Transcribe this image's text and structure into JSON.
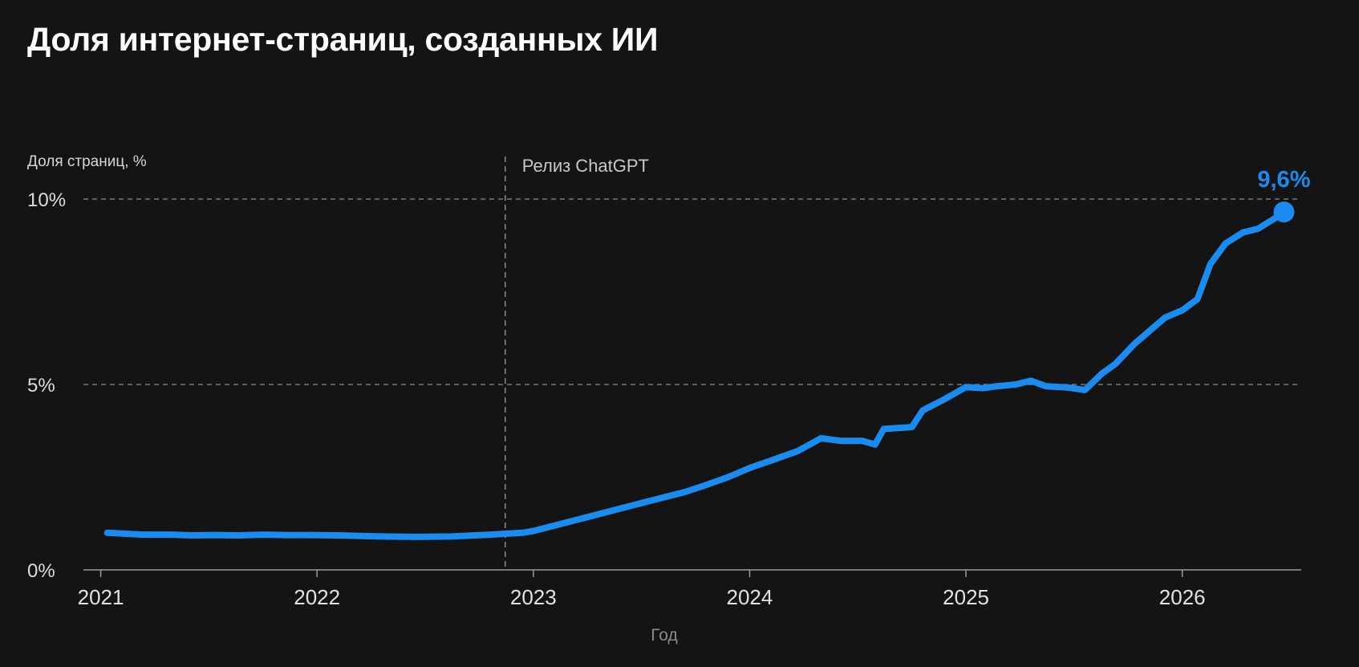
{
  "chart_data": {
    "type": "line",
    "title": "Доля интернет-страниц, созданных ИИ",
    "ylabel": "Доля страниц, %",
    "xlabel": "Год",
    "ylim": [
      0,
      10
    ],
    "xlim": [
      2020.92,
      2026.55
    ],
    "yticks": [
      {
        "value": 0,
        "label": "0%"
      },
      {
        "value": 5,
        "label": "5%"
      },
      {
        "value": 10,
        "label": "10%"
      }
    ],
    "xticks": [
      {
        "value": 2021,
        "label": "2021"
      },
      {
        "value": 2022,
        "label": "2022"
      },
      {
        "value": 2023,
        "label": "2023"
      },
      {
        "value": 2024,
        "label": "2024"
      },
      {
        "value": 2025,
        "label": "2025"
      },
      {
        "value": 2026,
        "label": "2026"
      }
    ],
    "grid": "horizontal dashed at 5% and 10%",
    "annotation": {
      "x": 2022.87,
      "label": "Релиз ChatGPT"
    },
    "end_label": "9,6%",
    "line_color": "#1a8cf0",
    "series": [
      {
        "x": [
          2021.03,
          2021.2,
          2021.33,
          2021.42,
          2021.53,
          2021.64,
          2021.75,
          2021.86,
          2021.97,
          2022.1,
          2022.3,
          2022.45,
          2022.62,
          2022.8,
          2022.95,
          2023.0,
          2023.1,
          2023.3,
          2023.5,
          2023.7,
          2023.78,
          2023.9,
          2024.0,
          2024.1,
          2024.22,
          2024.33,
          2024.42,
          2024.52,
          2024.58,
          2024.62,
          2024.75,
          2024.8,
          2024.9,
          2025.0,
          2025.08,
          2025.14,
          2025.23,
          2025.3,
          2025.37,
          2025.47,
          2025.55,
          2025.63,
          2025.69,
          2025.78,
          2025.84,
          2025.92,
          2026.0,
          2026.07,
          2026.13,
          2026.2,
          2026.28,
          2026.35,
          2026.42,
          2026.47
        ],
        "values": [
          1.0,
          0.95,
          0.95,
          0.93,
          0.94,
          0.93,
          0.95,
          0.94,
          0.94,
          0.93,
          0.9,
          0.89,
          0.9,
          0.95,
          1.0,
          1.05,
          1.2,
          1.5,
          1.8,
          2.1,
          2.25,
          2.5,
          2.75,
          2.95,
          3.2,
          3.55,
          3.48,
          3.48,
          3.38,
          3.8,
          3.85,
          4.3,
          4.6,
          4.93,
          4.9,
          4.95,
          5.0,
          5.1,
          4.95,
          4.92,
          4.85,
          5.3,
          5.55,
          6.1,
          6.4,
          6.8,
          7.0,
          7.3,
          8.25,
          8.8,
          9.1,
          9.2,
          9.45,
          9.65
        ]
      }
    ]
  }
}
